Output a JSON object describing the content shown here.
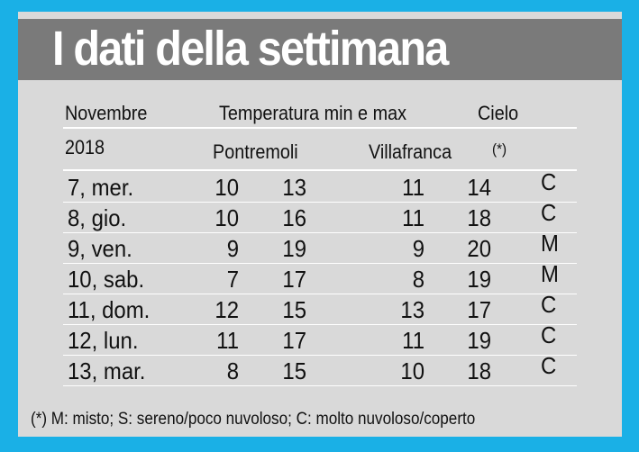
{
  "title": "I dati della settimana",
  "header": {
    "month": "Novembre",
    "temp_label": "Temperatura min e max",
    "sky_label": "Cielo",
    "year": "2018",
    "loc1": "Pontremoli",
    "loc2": "Villafranca",
    "sky_note": "(*)"
  },
  "rows": [
    {
      "day": "7, mer.",
      "p_min": "10",
      "p_max": "13",
      "v_min": "11",
      "v_max": "14",
      "sky": "C"
    },
    {
      "day": "8, gio.",
      "p_min": "10",
      "p_max": "16",
      "v_min": "11",
      "v_max": "18",
      "sky": "C"
    },
    {
      "day": "9, ven.",
      "p_min": "9",
      "p_max": "19",
      "v_min": "9",
      "v_max": "20",
      "sky": "M"
    },
    {
      "day": "10, sab.",
      "p_min": "7",
      "p_max": "17",
      "v_min": "8",
      "v_max": "19",
      "sky": "M"
    },
    {
      "day": "11, dom.",
      "p_min": "12",
      "p_max": "15",
      "v_min": "13",
      "v_max": "17",
      "sky": "C"
    },
    {
      "day": "12, lun.",
      "p_min": "11",
      "p_max": "17",
      "v_min": "11",
      "v_max": "19",
      "sky": "C"
    },
    {
      "day": "13, mar.",
      "p_min": "8",
      "p_max": "15",
      "v_min": "10",
      "v_max": "18",
      "sky": "C"
    }
  ],
  "footnote": "(*) M: misto; S: sereno/poco nuvoloso; C: molto nuvoloso/coperto",
  "colors": {
    "frame": "#1ab0e6",
    "card": "#d9d9d9",
    "title_bar": "#7a7a7a"
  }
}
